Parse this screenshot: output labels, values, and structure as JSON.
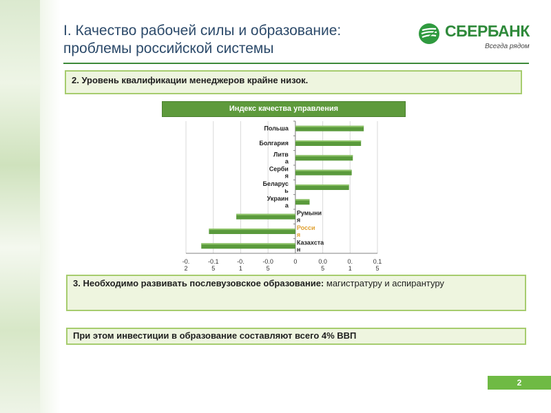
{
  "title": {
    "line1": "I. Качество рабочей силы и образование:",
    "line2": "проблемы российской системы"
  },
  "logo": {
    "name": "СБЕРБАНК",
    "slogan": "Всегда рядом",
    "icon": "sberbank-logo-icon"
  },
  "point2": "2. Уровень квалификации менеджеров крайне низок.",
  "chart_title": "Индекс качества управления",
  "chart_data": {
    "type": "bar",
    "orientation": "horizontal",
    "title": "Индекс качества управления",
    "categories": [
      "Польша",
      "Болгария",
      "Литва",
      "Сербия",
      "Беларусь",
      "Украина",
      "Румыния",
      "Россия",
      "Казахстан"
    ],
    "category_label_lines": [
      [
        "Польша"
      ],
      [
        "Болгария"
      ],
      [
        "Литв",
        "а"
      ],
      [
        "Серби",
        "я"
      ],
      [
        "Беларус",
        "ь"
      ],
      [
        "Украин",
        "а"
      ],
      [
        "Румыни",
        "я"
      ],
      [
        "Росси",
        "я"
      ],
      [
        "Казахста",
        "н"
      ]
    ],
    "values": [
      0.125,
      0.12,
      0.105,
      0.103,
      0.098,
      0.026,
      -0.108,
      -0.158,
      -0.172
    ],
    "highlight_category": "Россия",
    "colors": {
      "bar": "#5a9a3c",
      "bar_light": "#8fc46a",
      "label": "#222222",
      "highlight_label": "#e0a030",
      "grid": "#d9d9d9",
      "axis": "#808080"
    },
    "xlim": [
      -0.2,
      0.15
    ],
    "ticks": [
      -0.2,
      -0.15,
      -0.1,
      -0.05,
      0,
      0.05,
      0.1,
      0.15
    ],
    "tick_label_lines": [
      [
        "-0.",
        "2"
      ],
      [
        "-0.1",
        "5"
      ],
      [
        "-0.",
        "1"
      ],
      [
        "-0.0",
        "5"
      ],
      [
        "0"
      ],
      [
        "0.0",
        "5"
      ],
      [
        "0.",
        "1"
      ],
      [
        "0.1",
        "5"
      ]
    ],
    "grid": true
  },
  "point3": {
    "bold": "3. Необходимо развивать послевузовское образование:",
    "normal": "магистратуру и аспирантуру"
  },
  "investment_note": "При этом инвестиции в образование составляют всего 4% ВВП",
  "page_number": "2"
}
